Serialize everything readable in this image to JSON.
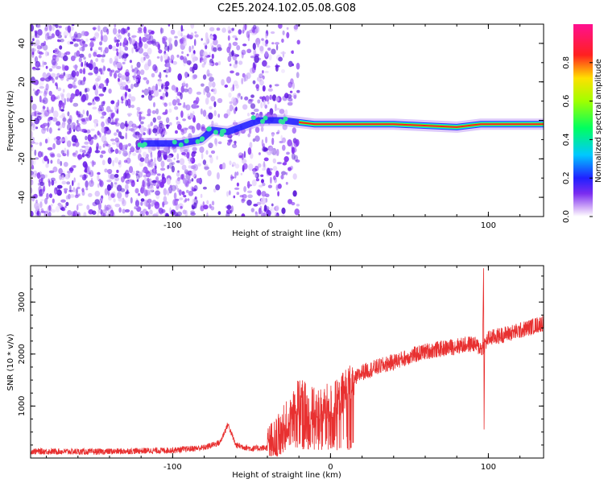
{
  "figure": {
    "title": "C2E5.2024.102.05.08.G08"
  },
  "colors": {
    "background": "#ffffff",
    "snr_line": "#e83030",
    "axis": "#000000"
  },
  "chart_data": [
    {
      "type": "heatmap",
      "title": "C2E5.2024.102.05.08.G08",
      "xlabel": "Height of straight line (km)",
      "ylabel": "Frequency (Hz)",
      "xlim": [
        -190,
        135
      ],
      "ylim": [
        -50,
        50
      ],
      "xticks": [
        -100,
        0,
        100
      ],
      "xtick_labels": [
        "-100",
        "0",
        "100"
      ],
      "yticks": [
        -40,
        -20,
        0,
        20,
        40
      ],
      "ytick_labels": [
        "-40",
        "-20",
        "0",
        "20",
        "40"
      ],
      "colorscale": "rainbow (purple–blue–cyan–green–yellow–red–magenta)",
      "ridge_frequency_hz": [
        {
          "x": -120,
          "y": -12
        },
        {
          "x": -95,
          "y": -12
        },
        {
          "x": -82,
          "y": -10
        },
        {
          "x": -75,
          "y": -5
        },
        {
          "x": -65,
          "y": -6
        },
        {
          "x": -45,
          "y": 0
        },
        {
          "x": -30,
          "y": 0
        },
        {
          "x": -20,
          "y": -1
        },
        {
          "x": -10,
          "y": -2
        },
        {
          "x": 0,
          "y": -2
        },
        {
          "x": 40,
          "y": -2
        },
        {
          "x": 80,
          "y": -3.5
        },
        {
          "x": 95,
          "y": -2
        },
        {
          "x": 135,
          "y": -2
        }
      ],
      "grid": false
    },
    {
      "type": "line",
      "xlabel": "Height of straight line (km)",
      "ylabel": "SNR (10 * v/v)",
      "xlim": [
        -190,
        135
      ],
      "ylim": [
        0,
        3700
      ],
      "xticks": [
        -100,
        0,
        100
      ],
      "xtick_labels": [
        "-100",
        "0",
        "100"
      ],
      "yticks": [
        1000,
        2000,
        3000
      ],
      "ytick_labels": [
        "1000",
        "2000",
        "3000"
      ],
      "series": [
        {
          "color": "#e83030",
          "points": [
            {
              "x": -190,
              "y": 130
            },
            {
              "x": -150,
              "y": 120
            },
            {
              "x": -100,
              "y": 150
            },
            {
              "x": -80,
              "y": 200
            },
            {
              "x": -70,
              "y": 300
            },
            {
              "x": -65,
              "y": 650
            },
            {
              "x": -60,
              "y": 250
            },
            {
              "x": -50,
              "y": 180
            },
            {
              "x": -40,
              "y": 200
            },
            {
              "x": -35,
              "y": 300
            },
            {
              "x": -25,
              "y": 800
            },
            {
              "x": -20,
              "y": 1100
            },
            {
              "x": -10,
              "y": 900
            },
            {
              "x": 0,
              "y": 1000
            },
            {
              "x": 5,
              "y": 1100
            },
            {
              "x": 10,
              "y": 1300
            },
            {
              "x": 15,
              "y": 1500
            },
            {
              "x": 20,
              "y": 1650
            },
            {
              "x": 40,
              "y": 1850
            },
            {
              "x": 60,
              "y": 2050
            },
            {
              "x": 80,
              "y": 2150
            },
            {
              "x": 90,
              "y": 2200
            },
            {
              "x": 96,
              "y": 2100
            },
            {
              "x": 100,
              "y": 2300
            },
            {
              "x": 120,
              "y": 2450
            },
            {
              "x": 135,
              "y": 2600
            }
          ],
          "spikes": [
            {
              "x": 97,
              "y_max": 3650,
              "y_min": 550
            }
          ]
        }
      ],
      "grid": false
    }
  ],
  "colorbar": {
    "label": "Normalized spectral amplitude",
    "range": [
      0,
      1
    ],
    "ticks": [
      0,
      0.2,
      0.4,
      0.6,
      0.8
    ],
    "tick_labels": [
      "0.0",
      "0.2",
      "0.4",
      "0.6",
      "0.8"
    ]
  }
}
